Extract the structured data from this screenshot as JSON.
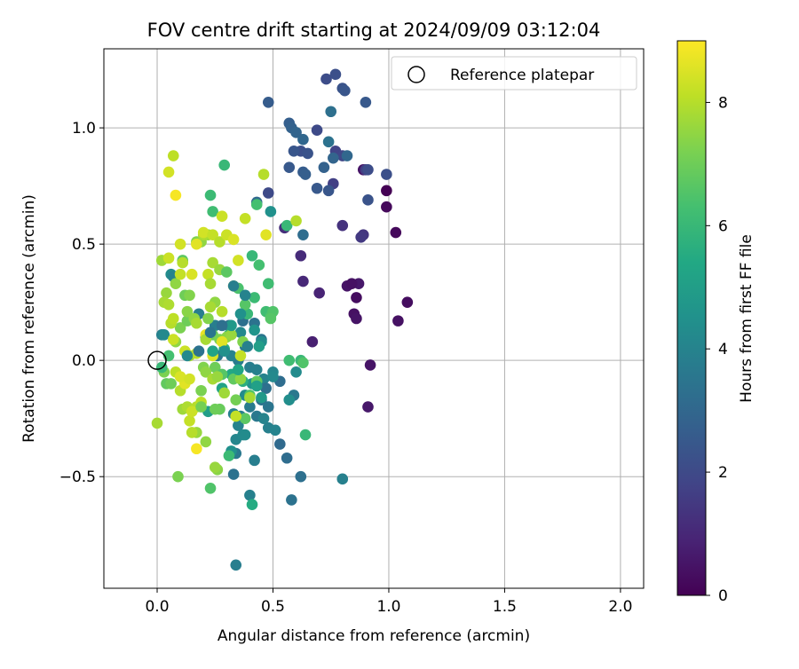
{
  "chart_data": {
    "type": "scatter",
    "title": "FOV centre drift starting at 2024/09/09 03:12:04",
    "xlabel": "Angular distance from reference (arcmin)",
    "ylabel": "Rotation from reference (arcmin)",
    "xlim": [
      -0.23,
      2.1
    ],
    "ylim": [
      -0.98,
      1.34
    ],
    "xticks": [
      "0.0",
      "0.5",
      "1.0",
      "1.5",
      "2.0"
    ],
    "xtick_values": [
      0,
      0.5,
      1.0,
      1.5,
      2.0
    ],
    "yticks": [
      "−0.5",
      "0.0",
      "0.5",
      "1.0"
    ],
    "ytick_values": [
      -0.5,
      0,
      0.5,
      1.0
    ],
    "grid": true,
    "colormap": "viridis",
    "colorbar": {
      "label": "Hours from first FF file",
      "range": [
        0,
        9
      ],
      "ticks": [
        "0",
        "2",
        "4",
        "6",
        "8"
      ],
      "tick_values": [
        0,
        2,
        4,
        6,
        8
      ]
    },
    "legend": {
      "label": "Reference platepar",
      "position": "upper right"
    },
    "reference_point": {
      "x": 0.0,
      "y": 0.0
    },
    "points": [
      [
        0.99,
        0.73,
        0.0
      ],
      [
        1.03,
        0.55,
        0.2
      ],
      [
        1.08,
        0.25,
        0.3
      ],
      [
        1.04,
        0.17,
        0.4
      ],
      [
        0.92,
        -0.02,
        0.5
      ],
      [
        0.91,
        -0.2,
        0.6
      ],
      [
        0.99,
        0.66,
        0.2
      ],
      [
        0.86,
        0.27,
        0.3
      ],
      [
        0.85,
        0.2,
        0.4
      ],
      [
        0.86,
        0.18,
        0.5
      ],
      [
        0.87,
        0.33,
        0.6
      ],
      [
        0.82,
        0.32,
        0.5
      ],
      [
        0.84,
        0.33,
        0.4
      ],
      [
        0.89,
        0.82,
        0.5
      ],
      [
        0.67,
        0.08,
        0.8
      ],
      [
        0.7,
        0.29,
        0.9
      ],
      [
        0.63,
        0.34,
        1.0
      ],
      [
        0.62,
        0.45,
        1.1
      ],
      [
        0.55,
        0.57,
        1.2
      ],
      [
        0.8,
        0.58,
        1.3
      ],
      [
        0.89,
        0.54,
        1.4
      ],
      [
        0.88,
        0.53,
        1.5
      ],
      [
        0.9,
        0.82,
        1.6
      ],
      [
        0.76,
        0.76,
        1.7
      ],
      [
        0.77,
        0.9,
        1.8
      ],
      [
        0.8,
        0.88,
        1.9
      ],
      [
        0.69,
        0.99,
        2.0
      ],
      [
        0.73,
        1.21,
        2.1
      ],
      [
        0.77,
        1.23,
        2.2
      ],
      [
        0.8,
        1.17,
        2.3
      ],
      [
        0.81,
        1.16,
        2.4
      ],
      [
        0.9,
        1.11,
        2.5
      ],
      [
        0.48,
        1.11,
        2.6
      ],
      [
        0.57,
        1.02,
        2.7
      ],
      [
        0.58,
        1.0,
        2.8
      ],
      [
        0.6,
        0.98,
        2.9
      ],
      [
        0.63,
        0.95,
        3.0
      ],
      [
        0.62,
        0.9,
        2.2
      ],
      [
        0.65,
        0.89,
        2.3
      ],
      [
        0.59,
        0.9,
        2.4
      ],
      [
        0.57,
        0.83,
        2.5
      ],
      [
        0.63,
        0.81,
        2.6
      ],
      [
        0.64,
        0.8,
        2.7
      ],
      [
        0.72,
        0.83,
        2.8
      ],
      [
        0.76,
        0.87,
        2.9
      ],
      [
        0.82,
        0.88,
        3.0
      ],
      [
        0.91,
        0.82,
        2.1
      ],
      [
        0.99,
        0.8,
        2.2
      ],
      [
        0.91,
        0.69,
        2.3
      ],
      [
        0.74,
        0.73,
        2.4
      ],
      [
        0.69,
        0.74,
        2.5
      ],
      [
        0.48,
        0.72,
        2.0
      ],
      [
        0.43,
        0.68,
        3.1
      ],
      [
        0.63,
        0.54,
        3.2
      ],
      [
        0.75,
        1.07,
        3.3
      ],
      [
        0.74,
        0.94,
        3.4
      ],
      [
        0.49,
        0.64,
        4.5
      ],
      [
        0.06,
        0.37,
        4.3
      ],
      [
        0.21,
        0.1,
        3.6
      ],
      [
        0.25,
        0.15,
        3.8
      ],
      [
        0.31,
        0.15,
        3.2
      ],
      [
        0.37,
        0.17,
        3.3
      ],
      [
        0.42,
        0.16,
        3.4
      ],
      [
        0.45,
        0.09,
        3.5
      ],
      [
        0.38,
        0.06,
        3.6
      ],
      [
        0.35,
        0.0,
        3.7
      ],
      [
        0.4,
        -0.03,
        3.8
      ],
      [
        0.43,
        -0.04,
        3.9
      ],
      [
        0.46,
        -0.08,
        4.0
      ],
      [
        0.5,
        -0.05,
        4.1
      ],
      [
        0.53,
        -0.09,
        3.2
      ],
      [
        0.47,
        -0.12,
        3.3
      ],
      [
        0.45,
        -0.17,
        3.4
      ],
      [
        0.48,
        -0.2,
        3.5
      ],
      [
        0.43,
        -0.24,
        3.6
      ],
      [
        0.4,
        -0.2,
        3.7
      ],
      [
        0.36,
        -0.24,
        3.8
      ],
      [
        0.33,
        -0.23,
        3.9
      ],
      [
        0.35,
        -0.28,
        4.0
      ],
      [
        0.34,
        -0.34,
        4.1
      ],
      [
        0.37,
        -0.32,
        4.2
      ],
      [
        0.38,
        -0.32,
        4.3
      ],
      [
        0.33,
        -0.49,
        3.4
      ],
      [
        0.34,
        -0.4,
        3.6
      ],
      [
        0.32,
        -0.39,
        4.5
      ],
      [
        0.42,
        -0.43,
        3.8
      ],
      [
        0.48,
        -0.29,
        3.9
      ],
      [
        0.51,
        -0.3,
        4.0
      ],
      [
        0.53,
        -0.36,
        3.1
      ],
      [
        0.56,
        -0.42,
        3.2
      ],
      [
        0.62,
        -0.5,
        3.3
      ],
      [
        0.58,
        -0.6,
        3.4
      ],
      [
        0.59,
        -0.15,
        3.6
      ],
      [
        0.8,
        -0.51,
        3.9
      ],
      [
        0.4,
        -0.58,
        3.9
      ],
      [
        0.41,
        -0.62,
        5.5
      ],
      [
        0.34,
        -0.88,
        3.8
      ],
      [
        0.07,
        0.36,
        4.0
      ],
      [
        0.02,
        0.11,
        3.9
      ],
      [
        0.03,
        0.11,
        4.2
      ],
      [
        0.18,
        0.2,
        3.8
      ],
      [
        0.26,
        0.02,
        3.5
      ],
      [
        0.32,
        0.02,
        4.0
      ],
      [
        0.36,
        0.12,
        4.2
      ],
      [
        0.38,
        -0.15,
        4.3
      ],
      [
        0.41,
        -0.1,
        4.6
      ],
      [
        0.45,
        -0.16,
        4.8
      ],
      [
        0.22,
        -0.22,
        5.0
      ],
      [
        0.28,
        -0.12,
        5.2
      ],
      [
        0.32,
        -0.06,
        5.4
      ],
      [
        0.37,
        -0.09,
        5.6
      ],
      [
        0.29,
        0.05,
        5.8
      ],
      [
        0.31,
        0.11,
        5.9
      ],
      [
        0.39,
        0.2,
        6.0
      ],
      [
        0.42,
        0.27,
        6.1
      ],
      [
        0.47,
        0.21,
        6.2
      ],
      [
        0.49,
        0.19,
        6.4
      ],
      [
        0.5,
        0.21,
        6.5
      ],
      [
        0.45,
        0.08,
        4.4
      ],
      [
        0.42,
        0.13,
        4.6
      ],
      [
        0.38,
        0.24,
        6.6
      ],
      [
        0.44,
        0.41,
        6.3
      ],
      [
        0.41,
        0.45,
        6.0
      ],
      [
        0.48,
        0.33,
        6.2
      ],
      [
        0.43,
        0.67,
        6.3
      ],
      [
        0.56,
        0.58,
        6.0
      ],
      [
        0.23,
        0.71,
        6.1
      ],
      [
        0.24,
        0.64,
        6.2
      ],
      [
        0.29,
        0.84,
        6.0
      ],
      [
        0.35,
        0.31,
        6.4
      ],
      [
        0.49,
        0.18,
        6.6
      ],
      [
        0.62,
        0.0,
        6.0
      ],
      [
        0.63,
        -0.01,
        6.5
      ],
      [
        0.57,
        0.0,
        6.2
      ],
      [
        0.64,
        -0.32,
        6.0
      ],
      [
        0.23,
        -0.55,
        6.5
      ],
      [
        0.31,
        -0.41,
        6.1
      ],
      [
        0.38,
        -0.25,
        6.7
      ],
      [
        0.27,
        -0.21,
        6.9
      ],
      [
        0.25,
        -0.21,
        7.0
      ],
      [
        0.19,
        -0.13,
        7.2
      ],
      [
        0.2,
        -0.03,
        7.3
      ],
      [
        0.25,
        -0.03,
        7.0
      ],
      [
        0.28,
        -0.06,
        6.6
      ],
      [
        0.33,
        -0.08,
        6.8
      ],
      [
        0.34,
        -0.17,
        7.1
      ],
      [
        0.4,
        -0.15,
        6.5
      ],
      [
        0.43,
        -0.09,
        6.8
      ],
      [
        0.26,
        -0.47,
        7.4
      ],
      [
        0.25,
        -0.46,
        7.6
      ],
      [
        0.09,
        -0.5,
        7.2
      ],
      [
        0.17,
        -0.31,
        7.6
      ],
      [
        0.11,
        -0.21,
        7.7
      ],
      [
        0.13,
        -0.2,
        7.9
      ],
      [
        0.1,
        -0.13,
        8.0
      ],
      [
        0.04,
        -0.1,
        6.8
      ],
      [
        0.06,
        -0.1,
        7.0
      ],
      [
        0.03,
        -0.05,
        7.2
      ],
      [
        0.02,
        -0.03,
        6.0
      ],
      [
        0.05,
        0.02,
        6.3
      ],
      [
        0.08,
        0.08,
        7.5
      ],
      [
        0.1,
        0.14,
        7.2
      ],
      [
        0.13,
        0.17,
        7.0
      ],
      [
        0.13,
        0.21,
        7.4
      ],
      [
        0.12,
        0.28,
        7.0
      ],
      [
        0.14,
        0.28,
        7.3
      ],
      [
        0.08,
        0.33,
        7.5
      ],
      [
        0.04,
        0.29,
        7.6
      ],
      [
        0.03,
        0.25,
        7.8
      ],
      [
        0.05,
        0.24,
        7.9
      ],
      [
        0.06,
        0.16,
        8.0
      ],
      [
        0.07,
        0.18,
        8.1
      ],
      [
        0.02,
        0.43,
        7.7
      ],
      [
        0.11,
        0.43,
        6.7
      ],
      [
        0.17,
        0.51,
        7.3
      ],
      [
        0.19,
        0.51,
        7.5
      ],
      [
        0.22,
        0.54,
        7.7
      ],
      [
        0.2,
        0.54,
        7.9
      ],
      [
        0.24,
        0.42,
        7.8
      ],
      [
        0.27,
        0.39,
        7.6
      ],
      [
        0.3,
        0.38,
        6.7
      ],
      [
        0.22,
        0.37,
        8.2
      ],
      [
        0.23,
        0.33,
        7.8
      ],
      [
        0.25,
        0.25,
        7.5
      ],
      [
        0.23,
        0.23,
        7.8
      ],
      [
        0.16,
        0.18,
        7.5
      ],
      [
        0.17,
        0.16,
        7.8
      ],
      [
        0.22,
        0.18,
        7.3
      ],
      [
        0.24,
        0.11,
        7.0
      ],
      [
        0.27,
        0.09,
        7.2
      ],
      [
        0.3,
        0.1,
        7.4
      ],
      [
        0.32,
        0.11,
        7.6
      ],
      [
        0.37,
        0.08,
        7.3
      ],
      [
        0.21,
        0.11,
        8.7
      ],
      [
        0.14,
        0.02,
        7.8
      ],
      [
        0.17,
        0.03,
        8.0
      ],
      [
        0.21,
        -0.05,
        7.5
      ],
      [
        0.24,
        -0.08,
        7.8
      ],
      [
        0.26,
        -0.07,
        7.6
      ],
      [
        0.17,
        -0.2,
        8.0
      ],
      [
        0.14,
        -0.26,
        8.2
      ],
      [
        0.15,
        -0.22,
        8.3
      ],
      [
        0.08,
        -0.05,
        8.1
      ],
      [
        0.0,
        -0.27,
        7.8
      ],
      [
        0.1,
        0.37,
        8.2
      ],
      [
        0.11,
        0.42,
        8.0
      ],
      [
        0.05,
        0.44,
        8.3
      ],
      [
        0.1,
        0.5,
        8.4
      ],
      [
        0.15,
        0.37,
        8.5
      ],
      [
        0.17,
        0.5,
        8.6
      ],
      [
        0.2,
        0.55,
        8.4
      ],
      [
        0.24,
        0.54,
        8.2
      ],
      [
        0.27,
        0.51,
        8.0
      ],
      [
        0.3,
        0.54,
        8.3
      ],
      [
        0.33,
        0.52,
        8.5
      ],
      [
        0.35,
        0.43,
        8.4
      ],
      [
        0.38,
        0.61,
        8.2
      ],
      [
        0.46,
        0.8,
        8.0
      ],
      [
        0.47,
        0.54,
        8.6
      ],
      [
        0.28,
        0.62,
        8.3
      ],
      [
        0.05,
        0.81,
        8.4
      ],
      [
        0.07,
        0.88,
        8.1
      ],
      [
        0.08,
        0.71,
        8.9
      ],
      [
        0.33,
        0.32,
        8.8
      ],
      [
        0.6,
        0.6,
        8.0
      ],
      [
        0.17,
        -0.38,
        8.9
      ],
      [
        0.21,
        -0.35,
        7.5
      ],
      [
        0.34,
        -0.24,
        8.2
      ],
      [
        0.12,
        -0.1,
        8.6
      ],
      [
        0.19,
        -0.18,
        8.1
      ],
      [
        0.12,
        0.04,
        8.3
      ],
      [
        0.28,
        0.08,
        8.6
      ],
      [
        0.24,
        0.02,
        8.5
      ],
      [
        0.36,
        0.02,
        8.2
      ],
      [
        0.21,
        0.09,
        7.8
      ],
      [
        0.28,
        0.21,
        8.0
      ],
      [
        0.07,
        0.09,
        8.3
      ],
      [
        0.1,
        -0.07,
        8.5
      ],
      [
        0.14,
        -0.08,
        8.4
      ],
      [
        0.15,
        -0.31,
        8.0
      ],
      [
        0.29,
        -0.14,
        7.7
      ],
      [
        0.36,
        -0.08,
        7.5
      ],
      [
        0.4,
        -0.16,
        7.8
      ],
      [
        0.19,
        -0.2,
        7.1
      ],
      [
        0.32,
        0.15,
        4.8
      ],
      [
        0.38,
        0.28,
        4.0
      ],
      [
        0.33,
        0.32,
        3.8
      ],
      [
        0.39,
        0.06,
        3.9
      ],
      [
        0.23,
        0.12,
        3.5
      ],
      [
        0.18,
        0.04,
        3.4
      ],
      [
        0.28,
        0.15,
        3.3
      ],
      [
        0.24,
        0.04,
        5.2
      ],
      [
        0.44,
        0.06,
        5.0
      ],
      [
        0.35,
        -0.04,
        5.3
      ],
      [
        0.43,
        -0.11,
        5.1
      ],
      [
        0.57,
        -0.17,
        4.4
      ],
      [
        0.5,
        -0.07,
        4.2
      ],
      [
        0.46,
        -0.25,
        4.0
      ],
      [
        0.6,
        -0.05,
        4.3
      ],
      [
        0.36,
        0.2,
        4.5
      ],
      [
        0.13,
        0.02,
        4.2
      ],
      [
        0.29,
        0.04,
        4.5
      ]
    ]
  }
}
